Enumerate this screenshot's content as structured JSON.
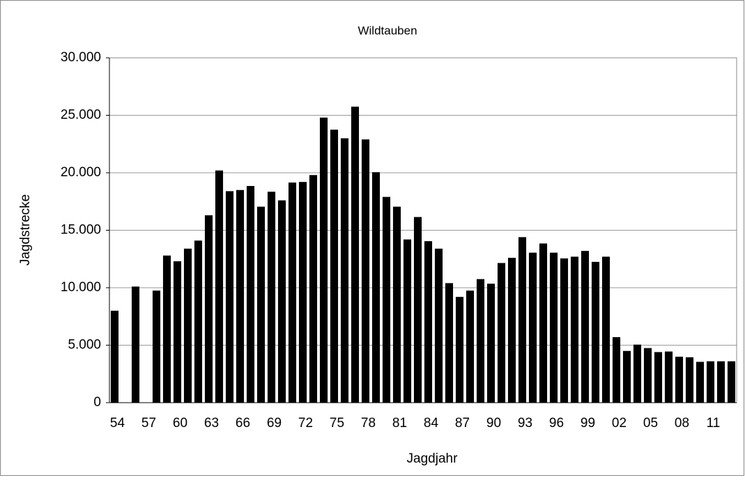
{
  "chart_data": {
    "type": "bar",
    "title": "Wildtauben",
    "x_label": "Jagdjahr",
    "y_label": "Jagdstrecke",
    "categories": [
      "54",
      null,
      null,
      "57",
      null,
      null,
      "60",
      null,
      null,
      "63",
      null,
      null,
      "66",
      null,
      null,
      "69",
      null,
      null,
      "72",
      null,
      null,
      "75",
      null,
      null,
      "78",
      null,
      null,
      "81",
      null,
      null,
      "84",
      null,
      null,
      "87",
      null,
      null,
      "90",
      null,
      null,
      "93",
      null,
      null,
      "96",
      null,
      null,
      "99",
      null,
      null,
      "02",
      null,
      null,
      "05",
      null,
      null,
      "08",
      null,
      null,
      "11",
      null,
      null
    ],
    "values": [
      8000,
      0,
      10100,
      0,
      9750,
      12800,
      12300,
      13400,
      14100,
      16300,
      20200,
      18400,
      18500,
      18850,
      17050,
      18350,
      17600,
      19150,
      19200,
      19800,
      24800,
      23750,
      23000,
      25750,
      22900,
      20050,
      17900,
      17050,
      14200,
      16150,
      14050,
      13400,
      10400,
      9200,
      9750,
      10750,
      10350,
      12150,
      12600,
      14400,
      13050,
      13850,
      13050,
      12550,
      12700,
      13200,
      12250,
      12700,
      5700,
      4500,
      5050,
      4750,
      4400,
      4450,
      4000,
      3950,
      3550,
      3600,
      3600,
      3600
    ],
    "color": "#000000",
    "ylim": [
      0,
      30000
    ],
    "yticks": [
      0,
      {
        "value": 5000,
        "label": "5.000"
      },
      {
        "value": 10000,
        "label": "10.000"
      },
      {
        "value": 15000,
        "label": "15.000"
      },
      {
        "value": 20000,
        "label": "20.000"
      },
      {
        "value": 25000,
        "label": "25.000"
      },
      {
        "value": 30000,
        "label": "30.000"
      }
    ],
    "grid": true
  }
}
